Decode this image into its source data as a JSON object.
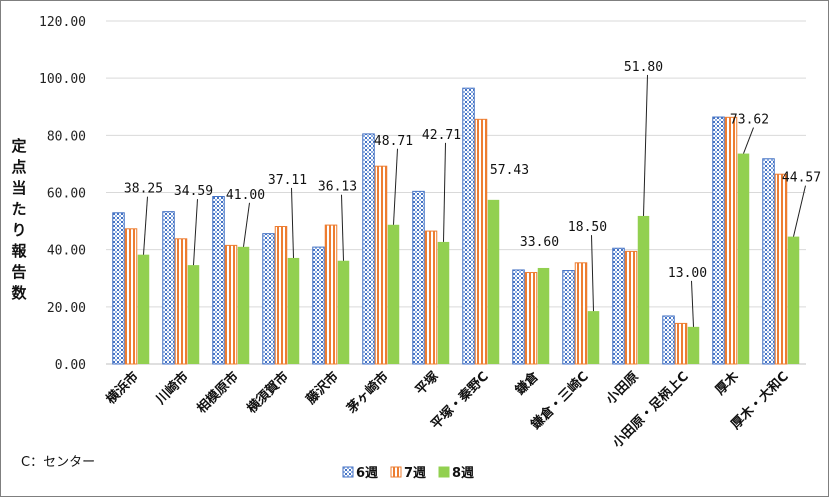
{
  "chart_data": {
    "type": "bar",
    "ylabel": "定点当たり報告数",
    "ylim": [
      0,
      120
    ],
    "yticks": [
      "0.00",
      "20.00",
      "40.00",
      "60.00",
      "80.00",
      "100.00",
      "120.00"
    ],
    "categories": [
      "横浜市",
      "川崎市",
      "相模原市",
      "横須賀市",
      "藤沢市",
      "茅ヶ崎市",
      "平塚",
      "平塚・秦野C",
      "鎌倉",
      "鎌倉・三崎C",
      "小田原",
      "小田原・足柄上C",
      "厚木",
      "厚木・大和C"
    ],
    "series": [
      {
        "name": "6週",
        "values": [
          52.9,
          53.3,
          58.6,
          45.6,
          40.9,
          80.5,
          60.4,
          96.5,
          32.9,
          32.7,
          40.5,
          16.8,
          86.4,
          71.8
        ],
        "color": "#4472c4",
        "pattern": "blue-dotted"
      },
      {
        "name": "7週",
        "values": [
          47.3,
          43.8,
          41.5,
          48.1,
          48.6,
          69.2,
          46.5,
          85.6,
          32.0,
          35.4,
          39.4,
          14.2,
          86.3,
          66.4
        ],
        "color": "#ed7d31",
        "pattern": "orange-striped"
      },
      {
        "name": "8週",
        "values": [
          38.25,
          34.59,
          41.0,
          37.11,
          36.13,
          48.71,
          42.71,
          57.43,
          33.6,
          18.5,
          51.8,
          13.0,
          73.62,
          44.57
        ],
        "color": "#92d050",
        "pattern": "solid-green"
      }
    ],
    "data_labels": [
      "38.25",
      "34.59",
      "41.00",
      "37.11",
      "36.13",
      "48.71",
      "42.71",
      "57.43",
      "33.60",
      "18.50",
      "51.80",
      "13.00",
      "73.62",
      "44.57"
    ],
    "grid": true,
    "legend": "bottom"
  },
  "note": "C：センター"
}
